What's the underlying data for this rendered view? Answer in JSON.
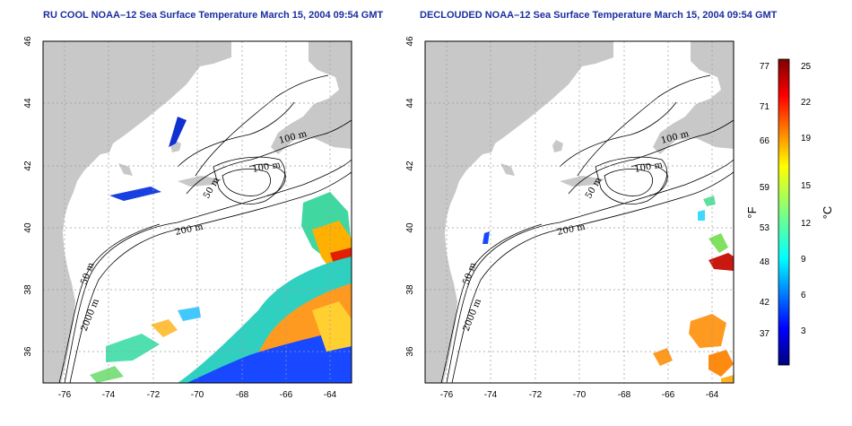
{
  "titles": {
    "left": "RU COOL NOAA–12 Sea Surface Temperature March 15, 2004 09:54 GMT",
    "right": "DECLOUDED NOAA–12 Sea Surface Temperature March 15, 2004 09:54 GMT"
  },
  "axes": {
    "lon_ticks": [
      "-76",
      "-74",
      "-72",
      "-70",
      "-68",
      "-66",
      "-64"
    ],
    "lat_ticks": [
      "36",
      "38",
      "40",
      "42",
      "44",
      "46"
    ]
  },
  "contours": [
    "100 m",
    "100 m",
    "50 m",
    "200 m",
    "50 m",
    "2000 m"
  ],
  "colorbar": {
    "fahrenheit_unit": "°F",
    "celsius_unit": "°C",
    "fahrenheit_ticks": [
      "77",
      "71",
      "66",
      "59",
      "53",
      "48",
      "42",
      "37"
    ],
    "celsius_ticks": [
      "25",
      "22",
      "19",
      "15",
      "12",
      "9",
      "6",
      "3"
    ]
  },
  "colors": {
    "land": "#c8c8c8",
    "ocean": "#ffffff",
    "title": "#1a2ea0",
    "grid": "#9a9a9a"
  },
  "map_data": {
    "lon_range": [
      -77,
      -63
    ],
    "lat_range": [
      35,
      46
    ],
    "grid_lon": [
      -76,
      -74,
      -72,
      -70,
      -68,
      -66,
      -64
    ],
    "grid_lat": [
      36,
      38,
      40,
      42,
      44
    ],
    "colorbar_celsius_range": [
      0,
      26
    ]
  }
}
